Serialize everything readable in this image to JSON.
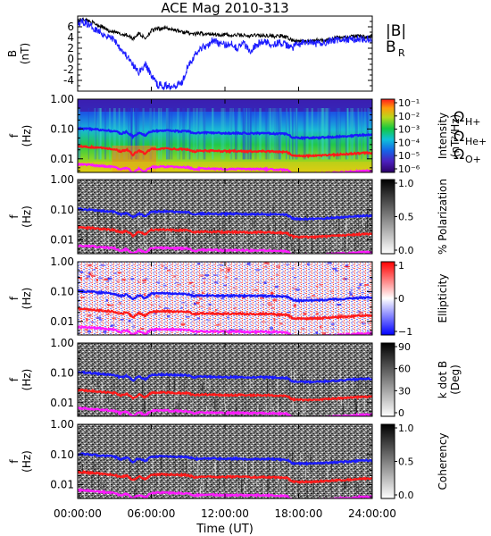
{
  "title": "ACE Mag 2010-313",
  "x_axis": {
    "label": "Time (UT)",
    "tick_labels": [
      "00:00:00",
      "06:00:00",
      "12:00:00",
      "18:00:00",
      "24:00:00"
    ],
    "ticks_hours": [
      0,
      6,
      12,
      18,
      24
    ]
  },
  "legend_gyro": {
    "h": "Ω",
    "h_sub": "H+",
    "he": "Ω",
    "he_sub": "He+",
    "o": "Ω",
    "o_sub": "O+"
  },
  "colors": {
    "B_total": "#000000",
    "B_R": "#1c1cff",
    "omega_H": "#1a1aff",
    "omega_He": "#ff1a1a",
    "omega_O": "#ff1aff"
  },
  "chart_data": [
    {
      "type": "line",
      "title": "ACE Mag 2010-313",
      "ylabel": "B",
      "ylabel_units": "(nT)",
      "ylim": [
        -6,
        8
      ],
      "ytick_labels": [
        "6",
        "4",
        "2",
        "0",
        "-2",
        "-4"
      ],
      "yticks": [
        6,
        4,
        2,
        0,
        -2,
        -4
      ],
      "xlim": [
        0,
        24
      ],
      "series": [
        {
          "name": "|B|",
          "x": [
            0,
            0.5,
            1,
            1.5,
            2,
            2.5,
            3,
            3.5,
            4,
            4.5,
            5,
            5.5,
            6,
            6.5,
            7,
            7.5,
            8,
            8.5,
            9,
            9.5,
            10,
            10.5,
            11,
            11.5,
            12,
            12.5,
            13,
            13.5,
            14,
            14.5,
            15,
            15.5,
            16,
            16.5,
            17,
            17.5,
            18,
            18.5,
            19,
            19.5,
            20,
            20.5,
            21,
            21.5,
            22,
            22.5,
            23,
            23.5,
            24
          ],
          "values": [
            7.2,
            7.4,
            7.0,
            6.5,
            6.0,
            5.3,
            5.0,
            4.6,
            4.5,
            3.8,
            4.8,
            3.8,
            5.3,
            5.6,
            5.8,
            5.6,
            5.4,
            5.0,
            4.9,
            4.6,
            4.8,
            4.6,
            4.7,
            4.5,
            4.6,
            4.3,
            4.5,
            4.4,
            4.2,
            4.5,
            4.3,
            4.4,
            4.2,
            4.3,
            4.0,
            3.5,
            3.3,
            3.3,
            3.3,
            3.5,
            3.4,
            3.7,
            4.0,
            4.0,
            4.0,
            4.2,
            4.3,
            4.1,
            4.2
          ]
        },
        {
          "name": "B",
          "name_sub": "R",
          "x": [
            0,
            0.5,
            1,
            1.5,
            2,
            2.5,
            3,
            3.5,
            4,
            4.5,
            5,
            5.5,
            6,
            6.5,
            7,
            7.5,
            8,
            8.5,
            9,
            9.5,
            10,
            10.5,
            11,
            11.5,
            12,
            12.5,
            13,
            13.5,
            14,
            14.5,
            15,
            15.5,
            16,
            16.5,
            17,
            17.5,
            18,
            18.5,
            19,
            19.5,
            20,
            20.5,
            21,
            21.5,
            22,
            22.5,
            23,
            23.5,
            24
          ],
          "values": [
            6.5,
            7.0,
            6.2,
            5.6,
            4.8,
            4.2,
            3.6,
            2.0,
            0.5,
            -1.2,
            -2.5,
            -1.0,
            -3.0,
            -4.8,
            -5.0,
            -5.0,
            -4.8,
            -4.4,
            -1.0,
            0.5,
            2.0,
            2.5,
            3.5,
            3.0,
            2.5,
            3.0,
            2.0,
            3.0,
            1.5,
            2.5,
            3.2,
            3.0,
            2.8,
            3.0,
            2.5,
            2.2,
            2.8,
            3.0,
            3.0,
            2.8,
            3.0,
            3.4,
            3.5,
            3.6,
            3.6,
            3.7,
            3.8,
            3.6,
            3.5
          ]
        }
      ]
    },
    {
      "type": "heatmap",
      "ylabel": "f",
      "ylabel_units": "(Hz)",
      "colorbar_label": "Intensity",
      "colorbar_units": "(nT²/Hz)",
      "colorbar_tick_labels": [
        "10⁻¹",
        "10⁻²",
        "10⁻³",
        "10⁻⁴",
        "10⁻⁵",
        "10⁻⁶"
      ],
      "ytick_labels": [
        "1.00",
        "0.10",
        "0.01"
      ],
      "ylog": true,
      "ylim": [
        0.0035,
        1.0
      ]
    },
    {
      "type": "heatmap",
      "ylabel": "f",
      "ylabel_units": "(Hz)",
      "colorbar_label": "% Polarization",
      "colorbar_tick_labels": [
        "1.0",
        "0.5",
        "0.0"
      ],
      "ytick_labels": [
        "1.00",
        "0.10",
        "0.01"
      ],
      "ylog": true,
      "ylim": [
        0.0035,
        1.0
      ]
    },
    {
      "type": "heatmap",
      "ylabel": "f",
      "ylabel_units": "(Hz)",
      "colorbar_label": "Ellipticity",
      "colorbar_tick_labels": [
        "1",
        "0",
        "−1"
      ],
      "ytick_labels": [
        "1.00",
        "0.10",
        "0.01"
      ],
      "ylog": true,
      "ylim": [
        0.0035,
        1.0
      ]
    },
    {
      "type": "heatmap",
      "ylabel": "f",
      "ylabel_units": "(Hz)",
      "colorbar_label": "k dot B",
      "colorbar_units": "(Deg)",
      "colorbar_tick_labels": [
        "90",
        "60",
        "30",
        "0"
      ],
      "ytick_labels": [
        "1.00",
        "0.10",
        "0.01"
      ],
      "ylog": true,
      "ylim": [
        0.0035,
        1.0
      ]
    },
    {
      "type": "heatmap",
      "ylabel": "f",
      "ylabel_units": "(Hz)",
      "colorbar_label": "Coherency",
      "colorbar_tick_labels": [
        "1.0",
        "0.5",
        "0.0"
      ],
      "ytick_labels": [
        "1.00",
        "0.10",
        "0.01"
      ],
      "ylog": true,
      "ylim": [
        0.0035,
        1.0
      ]
    }
  ],
  "gyrofrequency_curves": {
    "x": [
      0,
      1,
      2,
      3,
      3.5,
      4,
      4.5,
      5,
      5.5,
      6,
      7,
      8,
      9,
      9.5,
      10,
      11,
      12,
      13,
      14,
      15,
      16,
      17,
      17.5,
      18,
      19,
      20,
      21,
      22,
      23,
      24
    ],
    "omega_H": [
      0.105,
      0.1,
      0.092,
      0.085,
      0.07,
      0.08,
      0.055,
      0.075,
      0.06,
      0.085,
      0.088,
      0.085,
      0.083,
      0.07,
      0.075,
      0.074,
      0.072,
      0.073,
      0.071,
      0.072,
      0.07,
      0.068,
      0.052,
      0.05,
      0.05,
      0.052,
      0.055,
      0.058,
      0.062,
      0.064
    ]
  }
}
